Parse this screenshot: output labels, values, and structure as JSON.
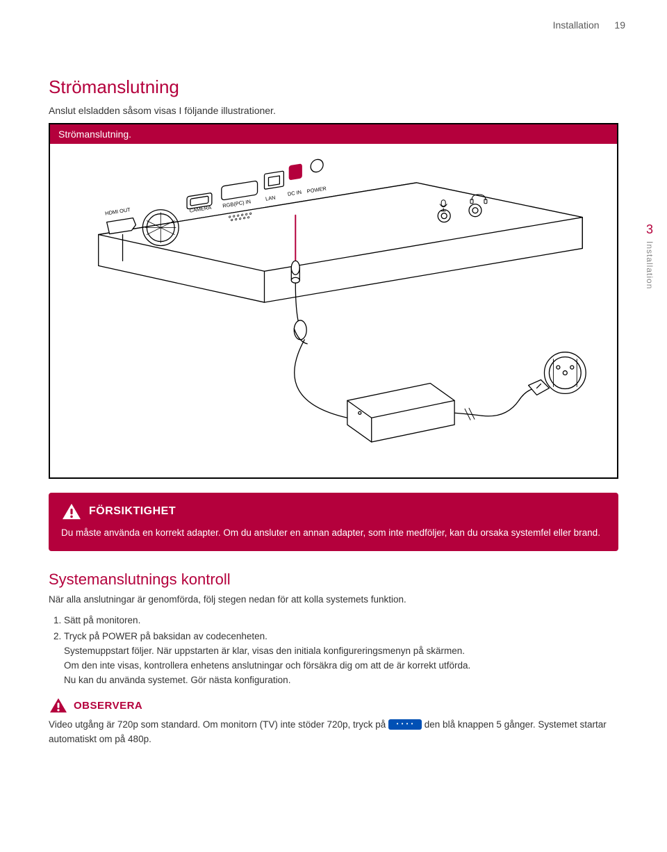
{
  "header": {
    "title": "Installation",
    "page_number": "19"
  },
  "sidetab": {
    "number": "3",
    "label": "Installation"
  },
  "section": {
    "heading": "Strömanslutning",
    "intro": "Anslut elsladden såsom visas I följande illustrationer.",
    "figure_caption": "Strömanslutning."
  },
  "diagram": {
    "ports": {
      "hdmi_out": "HDMI OUT",
      "camera": "CAMERA",
      "rgb_pc_in": "RGB(PC) IN",
      "lan": "LAN",
      "dc_in": "DC IN",
      "power": "POWER"
    },
    "colors": {
      "stroke": "#000000",
      "fill": "#ffffff",
      "highlight": "#b4003c"
    }
  },
  "caution": {
    "title": "FÖRSIKTIGHET",
    "body": "Du måste använda en korrekt adapter. Om du ansluter en annan adapter, som inte medföljer, kan du orsaka systemfel eller brand.",
    "bg_color": "#b4003c",
    "text_color": "#ffffff"
  },
  "subsection": {
    "heading": "Systemanslutnings kontroll",
    "intro": "När alla anslutningar är genomförda, följ stegen nedan för att kolla systemets funktion.",
    "steps": [
      "Sätt på monitoren.",
      "Tryck på POWER på baksidan av codecenheten.\nSystemuppstart följer. När uppstarten är klar, visas den initiala konfigureringsmenyn på skärmen.\nOm den inte visas, kontrollera enhetens anslutningar och försäkra dig om att de är korrekt utförda.\nNu kan du använda systemet. Gör nästa konfiguration."
    ]
  },
  "note": {
    "title": "OBSERVERA",
    "body_pre": "Video utgång är 720p som standard. Om monitorn (TV) inte stöder 720p, tryck på ",
    "body_post": " den blå knappen 5 gånger. Systemet startar automatiskt om på 480p.",
    "title_color": "#b4003c",
    "button_color": "#0050b5"
  }
}
